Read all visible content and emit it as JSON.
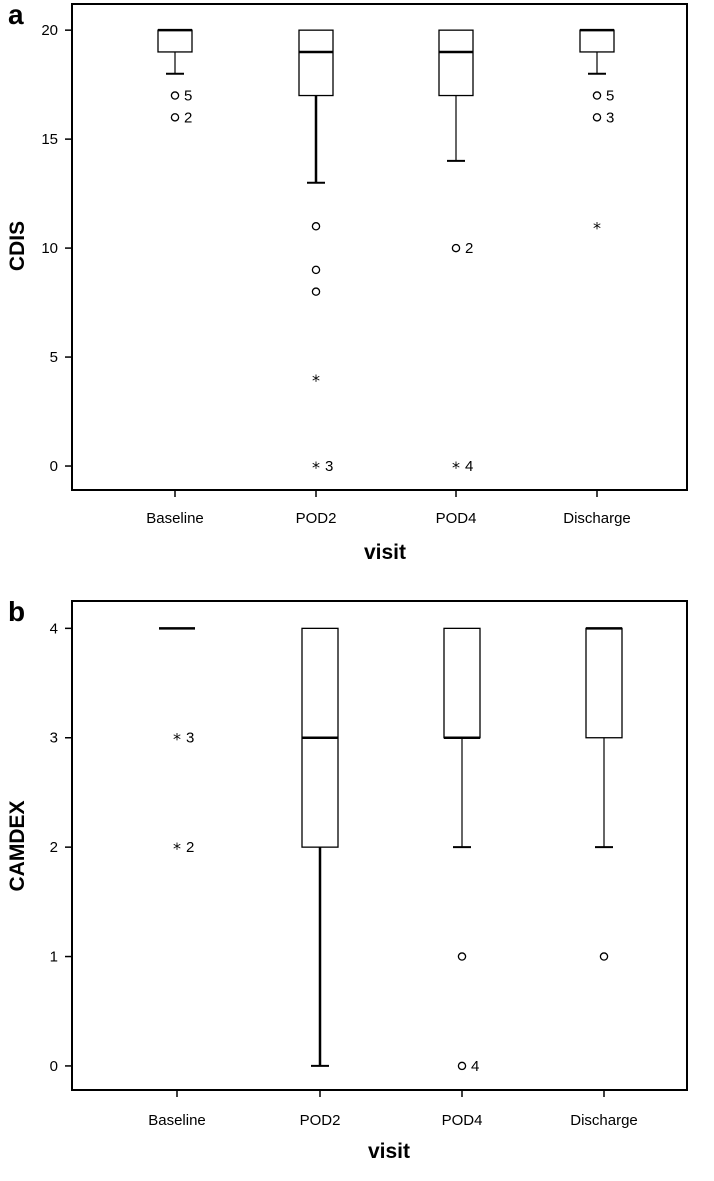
{
  "chart_data": [
    {
      "panel": "a",
      "type": "box",
      "xlabel": "visit",
      "ylabel": "CDIS",
      "ylim": [
        -1.1,
        21.2
      ],
      "yticks": [
        0,
        5,
        10,
        15,
        20
      ],
      "categories": [
        "Baseline",
        "POD2",
        "POD4",
        "Discharge"
      ],
      "boxes": [
        {
          "category": "Baseline",
          "q1": 19,
          "median": 20,
          "q3": 20,
          "whisker_low": 18,
          "whisker_high": 20,
          "outliers": [
            {
              "value": 17,
              "marker": "circle",
              "label": "5"
            },
            {
              "value": 16,
              "marker": "circle",
              "label": "2"
            }
          ]
        },
        {
          "category": "POD2",
          "q1": 17,
          "median": 19,
          "q3": 20,
          "whisker_low": 13,
          "whisker_high": 20,
          "outliers": [
            {
              "value": 11,
              "marker": "circle",
              "label": ""
            },
            {
              "value": 9,
              "marker": "circle",
              "label": ""
            },
            {
              "value": 8,
              "marker": "circle",
              "label": ""
            },
            {
              "value": 4,
              "marker": "star",
              "label": ""
            },
            {
              "value": 0,
              "marker": "star",
              "label": "3"
            }
          ]
        },
        {
          "category": "POD4",
          "q1": 17,
          "median": 19,
          "q3": 20,
          "whisker_low": 14,
          "whisker_high": 20,
          "outliers": [
            {
              "value": 10,
              "marker": "circle",
              "label": "2"
            },
            {
              "value": 0,
              "marker": "star",
              "label": "4"
            }
          ]
        },
        {
          "category": "Discharge",
          "q1": 19,
          "median": 20,
          "q3": 20,
          "whisker_low": 18,
          "whisker_high": 20,
          "outliers": [
            {
              "value": 17,
              "marker": "circle",
              "label": "5"
            },
            {
              "value": 16,
              "marker": "circle",
              "label": "3"
            },
            {
              "value": 11,
              "marker": "star",
              "label": ""
            }
          ]
        }
      ]
    },
    {
      "panel": "b",
      "type": "box",
      "xlabel": "visit",
      "ylabel": "CAMDEX",
      "ylim": [
        -0.22,
        4.25
      ],
      "yticks": [
        0,
        1,
        2,
        3,
        4
      ],
      "categories": [
        "Baseline",
        "POD2",
        "POD4",
        "Discharge"
      ],
      "boxes": [
        {
          "category": "Baseline",
          "q1": 4,
          "median": 4,
          "q3": 4,
          "whisker_low": 4,
          "whisker_high": 4,
          "outliers": [
            {
              "value": 3,
              "marker": "star",
              "label": "3"
            },
            {
              "value": 2,
              "marker": "star",
              "label": "2"
            }
          ]
        },
        {
          "category": "POD2",
          "q1": 2,
          "median": 3,
          "q3": 4,
          "whisker_low": 0,
          "whisker_high": 4,
          "outliers": []
        },
        {
          "category": "POD4",
          "q1": 3,
          "median": 3,
          "q3": 4,
          "whisker_low": 2,
          "whisker_high": 4,
          "outliers": [
            {
              "value": 1,
              "marker": "circle",
              "label": ""
            },
            {
              "value": 0,
              "marker": "circle",
              "label": "4"
            }
          ]
        },
        {
          "category": "Discharge",
          "q1": 3,
          "median": 4,
          "q3": 4,
          "whisker_low": 2,
          "whisker_high": 4,
          "outliers": [
            {
              "value": 1,
              "marker": "circle",
              "label": ""
            }
          ]
        }
      ]
    }
  ]
}
